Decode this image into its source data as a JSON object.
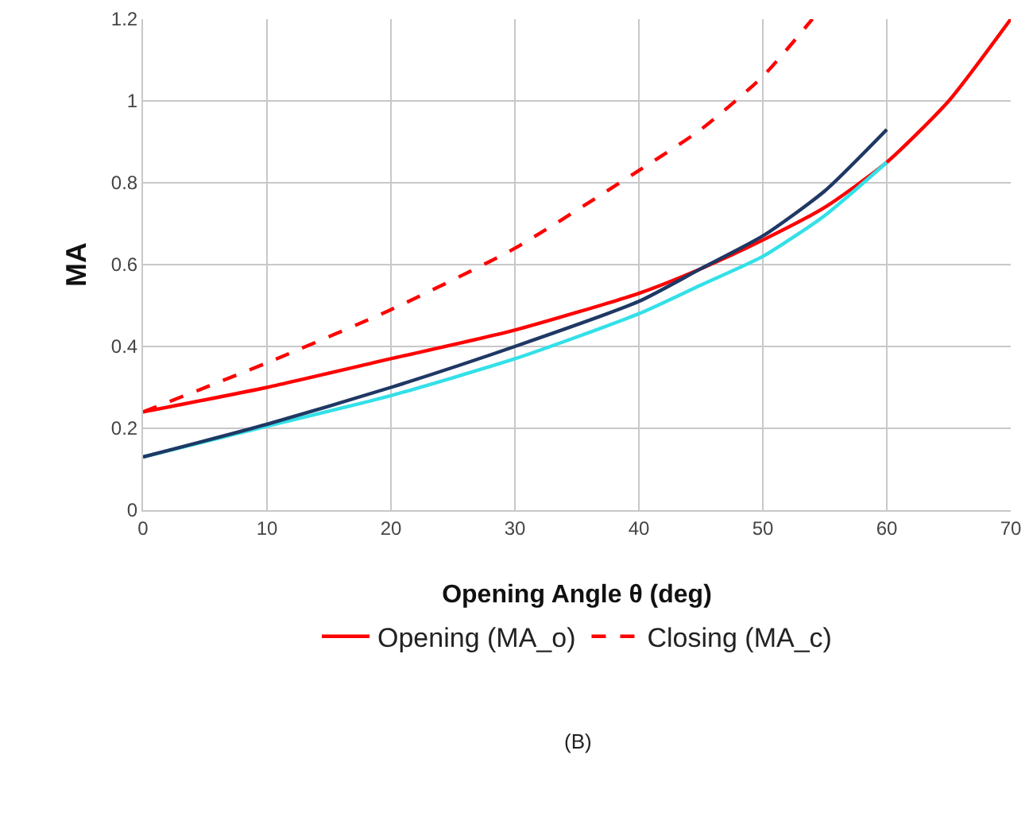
{
  "chart_data": {
    "type": "line",
    "xlabel": "Opening Angle θ (deg)",
    "ylabel": "MA",
    "xlim": [
      0,
      70
    ],
    "xticks": [
      0,
      10,
      20,
      30,
      40,
      50,
      60,
      70
    ],
    "ylim": [
      0,
      1.2
    ],
    "yticks": [
      0,
      0.2,
      0.4,
      0.6,
      0.8,
      1,
      1.2
    ],
    "grid": true,
    "legend": "bottom",
    "marker": "none",
    "annotations": [
      "(B)"
    ],
    "series": [
      {
        "name": "Opening (MA_o)",
        "color": "#ff0000",
        "line_style": "solid",
        "x": [
          0,
          10,
          20,
          30,
          40,
          45,
          50,
          55,
          60,
          65,
          70
        ],
        "values": [
          0.24,
          0.3,
          0.37,
          0.44,
          0.53,
          0.59,
          0.66,
          0.74,
          0.85,
          1.0,
          1.2
        ]
      },
      {
        "name": "Closing (MA_c)",
        "color": "#ff0000",
        "line_style": "dashed",
        "x": [
          0,
          10,
          20,
          30,
          40,
          45,
          50,
          54
        ],
        "values": [
          0.24,
          0.36,
          0.49,
          0.64,
          0.83,
          0.93,
          1.06,
          1.2
        ]
      },
      {
        "color": "#33e0e8",
        "line_style": "solid",
        "x": [
          0,
          10,
          20,
          30,
          40,
          45,
          50,
          55,
          60
        ],
        "values": [
          0.13,
          0.205,
          0.28,
          0.37,
          0.48,
          0.55,
          0.62,
          0.72,
          0.85
        ]
      },
      {
        "color": "#1f3864",
        "line_style": "solid",
        "x": [
          0,
          10,
          20,
          30,
          40,
          45,
          50,
          55,
          60
        ],
        "values": [
          0.13,
          0.21,
          0.3,
          0.4,
          0.51,
          0.59,
          0.67,
          0.78,
          0.93
        ]
      }
    ]
  }
}
